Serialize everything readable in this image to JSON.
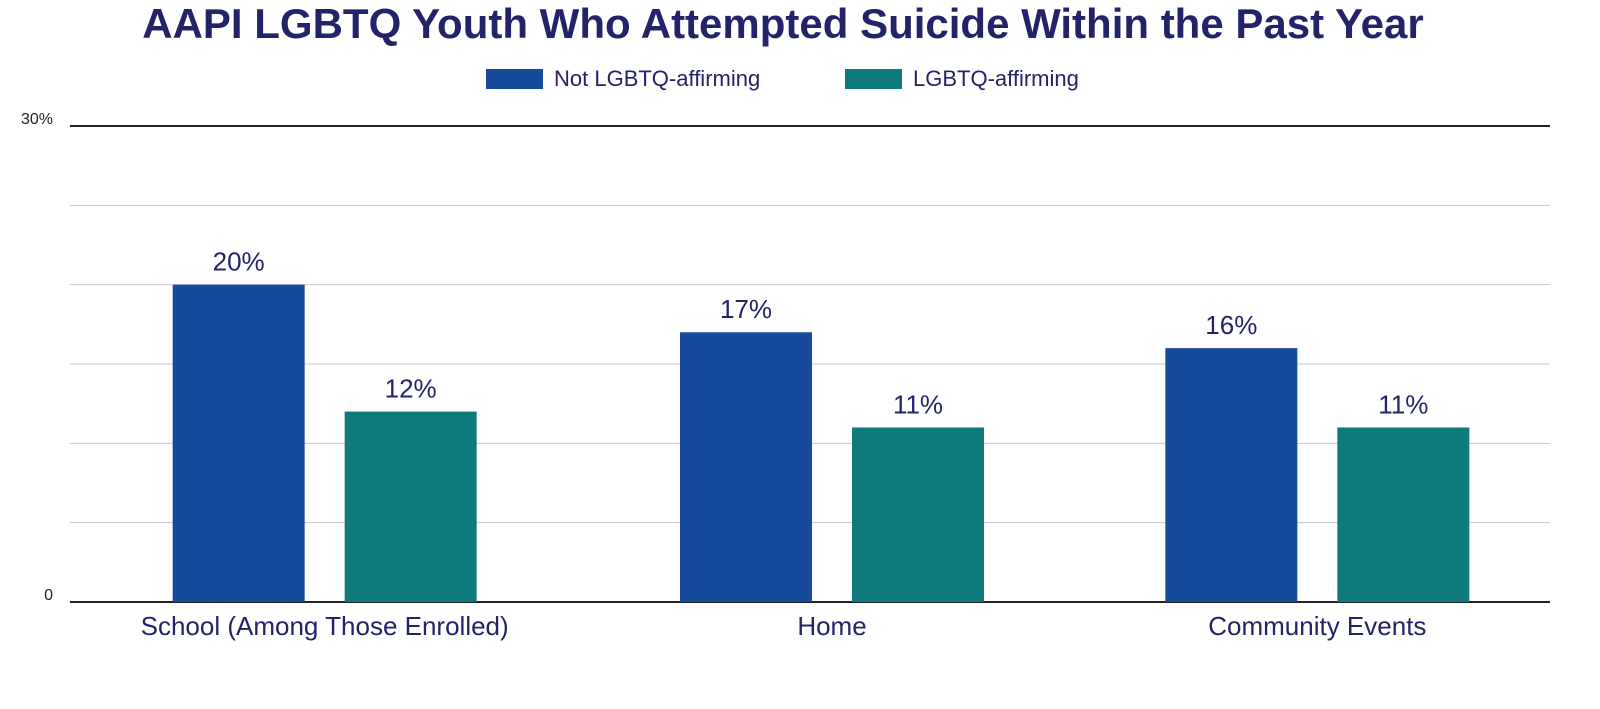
{
  "chart_data": {
    "type": "bar",
    "title": "AAPI LGBTQ Youth Who Attempted Suicide Within the Past Year",
    "categories": [
      "School (Among Those Enrolled)",
      "Home",
      "Community Events"
    ],
    "series": [
      {
        "name": "Not LGBTQ-affirming",
        "color": "#164a9c",
        "values": [
          20,
          17,
          16
        ],
        "value_labels": [
          "20%",
          "17%",
          "16%"
        ]
      },
      {
        "name": "LGBTQ-affirming",
        "color": "#0f7a7b",
        "values": [
          12,
          11,
          11
        ],
        "value_labels": [
          "12%",
          "11%",
          "11%"
        ]
      }
    ],
    "ylim": [
      0,
      30
    ],
    "yticks": [
      0,
      {
        "value": 5,
        "label": null
      },
      {
        "value": 10,
        "label": null
      },
      {
        "value": 15,
        "label": null
      },
      {
        "value": 20,
        "label": null
      },
      {
        "value": 25,
        "label": null
      },
      {
        "value": 30,
        "label": "30%"
      }
    ],
    "grid": true,
    "legend": "top"
  }
}
